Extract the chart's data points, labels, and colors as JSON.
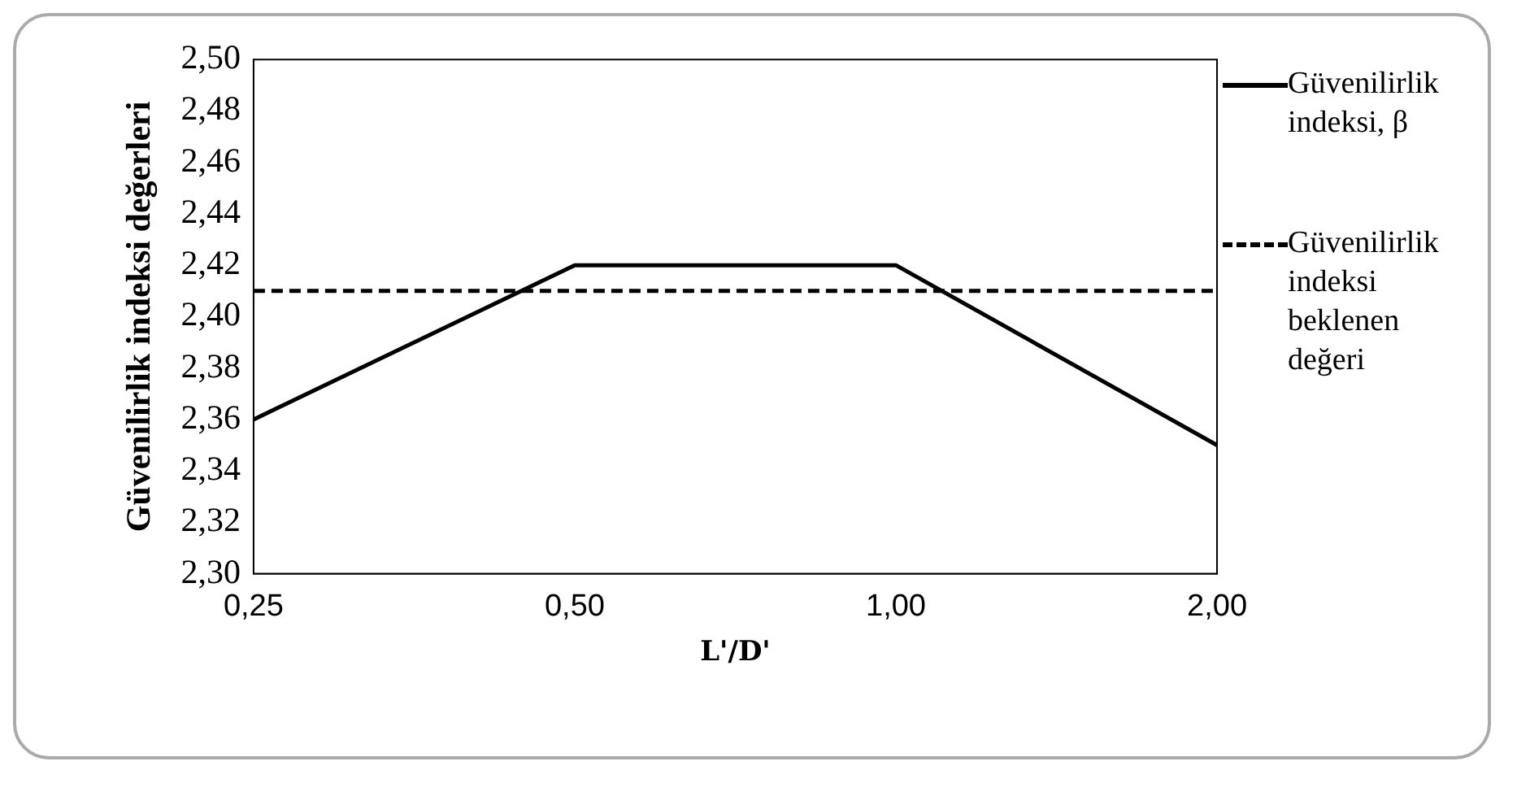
{
  "chart_data": {
    "type": "line",
    "xlabel": "L'/D'",
    "ylabel": "Güvenilirlik indeksi değerleri",
    "categories": [
      "0,25",
      "0,50",
      "1,00",
      "2,00"
    ],
    "series": [
      {
        "name": "Güvenilirlik indeksi, β",
        "color": "#000000",
        "values": [
          2.36,
          2.42,
          2.42,
          2.35
        ],
        "line_style": "solid"
      },
      {
        "name": "Güvenilirlik indeksi beklenen değeri",
        "color": "#000000",
        "values": [
          2.41,
          2.41,
          2.41,
          2.41
        ],
        "line_style": "dashed"
      }
    ],
    "ylim": [
      2.3,
      2.5
    ],
    "yticks": [
      {
        "value": 2.3,
        "label": "2,30"
      },
      {
        "value": 2.32,
        "label": "2,32"
      },
      {
        "value": 2.34,
        "label": "2,34"
      },
      {
        "value": 2.36,
        "label": "2,36"
      },
      {
        "value": 2.38,
        "label": "2,38"
      },
      {
        "value": 2.4,
        "label": "2,40"
      },
      {
        "value": 2.42,
        "label": "2,42"
      },
      {
        "value": 2.44,
        "label": "2,44"
      },
      {
        "value": 2.46,
        "label": "2,46"
      },
      {
        "value": 2.48,
        "label": "2,48"
      },
      {
        "value": 2.5,
        "label": "2,50"
      }
    ],
    "grid": false,
    "legend": "right",
    "marker": "none"
  }
}
